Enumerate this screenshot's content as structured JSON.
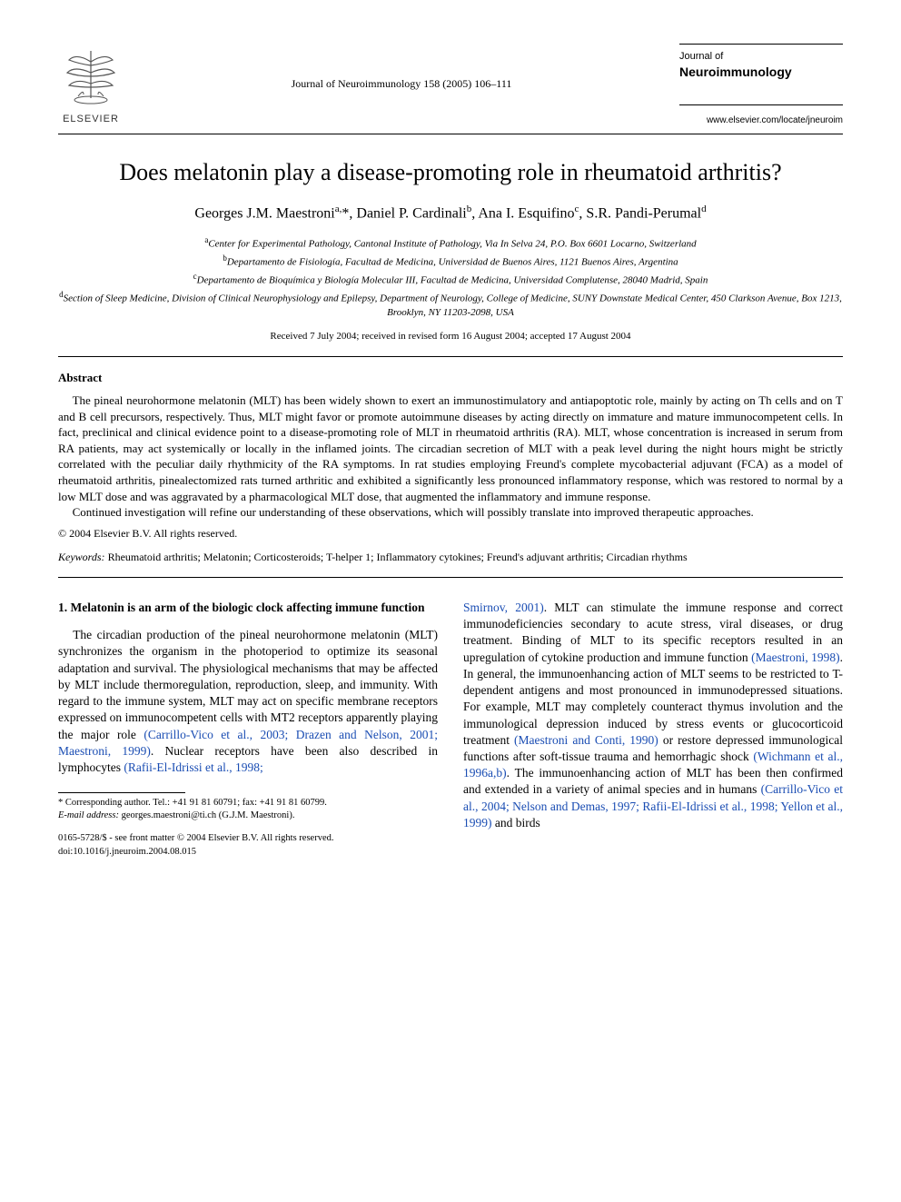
{
  "header": {
    "publisher_name": "ELSEVIER",
    "citation": "Journal of Neuroimmunology 158 (2005) 106–111",
    "journal_small": "Journal of",
    "journal_bold": "Neuroimmunology",
    "journal_url": "www.elsevier.com/locate/jneuroim"
  },
  "title": "Does melatonin play a disease-promoting role in rheumatoid arthritis?",
  "authors_html": "Georges J.M. Maestroni<sup>a,</sup>*, Daniel P. Cardinali<sup>b</sup>, Ana I. Esquifino<sup>c</sup>, S.R. Pandi-Perumal<sup>d</sup>",
  "affiliations": [
    {
      "sup": "a",
      "text": "Center for Experimental Pathology, Cantonal Institute of Pathology, Via In Selva 24, P.O. Box 6601 Locarno, Switzerland"
    },
    {
      "sup": "b",
      "text": "Departamento de Fisiología, Facultad de Medicina, Universidad de Buenos Aires, 1121 Buenos Aires, Argentina"
    },
    {
      "sup": "c",
      "text": "Departamento de Bioquímica y Biología Molecular III, Facultad de Medicina, Universidad Complutense, 28040 Madrid, Spain"
    },
    {
      "sup": "d",
      "text": "Section of Sleep Medicine, Division of Clinical Neurophysiology and Epilepsy, Department of Neurology, College of Medicine, SUNY Downstate Medical Center, 450 Clarkson Avenue, Box 1213, Brooklyn, NY 11203-2098, USA"
    }
  ],
  "dates": "Received 7 July 2004; received in revised form 16 August 2004; accepted 17 August 2004",
  "abstract": {
    "heading": "Abstract",
    "p1": "The pineal neurohormone melatonin (MLT) has been widely shown to exert an immunostimulatory and antiapoptotic role, mainly by acting on Th cells and on T and B cell precursors, respectively. Thus, MLT might favor or promote autoimmune diseases by acting directly on immature and mature immunocompetent cells. In fact, preclinical and clinical evidence point to a disease-promoting role of MLT in rheumatoid arthritis (RA). MLT, whose concentration is increased in serum from RA patients, may act systemically or locally in the inflamed joints. The circadian secretion of MLT with a peak level during the night hours might be strictly correlated with the peculiar daily rhythmicity of the RA symptoms. In rat studies employing Freund's complete mycobacterial adjuvant (FCA) as a model of rheumatoid arthritis, pinealectomized rats turned arthritic and exhibited a significantly less pronounced inflammatory response, which was restored to normal by a low MLT dose and was aggravated by a pharmacological MLT dose, that augmented the inflammatory and immune response.",
    "p2": "Continued investigation will refine our understanding of these observations, which will possibly translate into improved therapeutic approaches.",
    "copyright": "© 2004 Elsevier B.V. All rights reserved."
  },
  "keywords": {
    "label": "Keywords:",
    "text": " Rheumatoid arthritis; Melatonin; Corticosteroids; T-helper 1; Inflammatory cytokines; Freund's adjuvant arthritis; Circadian rhythms"
  },
  "body": {
    "section_heading": "1. Melatonin is an arm of the biologic clock affecting immune function",
    "left_p": "The circadian production of the pineal neurohormone melatonin (MLT) synchronizes the organism in the photoperiod to optimize its seasonal adaptation and survival. The physiological mechanisms that may be affected by MLT include thermoregulation, reproduction, sleep, and immunity. With regard to the immune system, MLT may act on specific membrane receptors expressed on immunocompetent cells with MT2 receptors apparently playing the major role ",
    "left_ref1": "(Carrillo-Vico et al., 2003; Drazen and Nelson, 2001; Maestroni, 1999)",
    "left_mid": ". Nuclear receptors have been also described in lymphocytes ",
    "left_ref2": "(Rafii-El-Idrissi et al., 1998; ",
    "right_ref_cont": "Smirnov, 2001)",
    "right_p1": ". MLT can stimulate the immune response and correct immunodeficiencies secondary to acute stress, viral diseases, or drug treatment. Binding of MLT to its specific receptors resulted in an upregulation of cytokine production and immune function ",
    "right_ref1": "(Maestroni, 1998)",
    "right_p2": ". In general, the immunoenhancing action of MLT seems to be restricted to T-dependent antigens and most pronounced in immunodepressed situations. For example, MLT may completely counteract thymus involution and the immunological depression induced by stress events or glucocorticoid treatment ",
    "right_ref2": "(Maestroni and Conti, 1990)",
    "right_p3": " or restore depressed immunological functions after soft-tissue trauma and hemorrhagic shock ",
    "right_ref3": "(Wichmann et al., 1996a,b)",
    "right_p4": ". The immunoenhancing action of MLT has been then confirmed and extended in a variety of animal species and in humans ",
    "right_ref4": "(Carrillo-Vico et al., 2004; Nelson and Demas, 1997; Rafii-El-Idrissi et al., 1998; Yellon et al., 1999)",
    "right_p5": " and birds"
  },
  "footnote": {
    "corr": "* Corresponding author. Tel.: +41 91 81 60791; fax: +41 91 81 60799.",
    "email_label": "E-mail address:",
    "email": " georges.maestroni@ti.ch (G.J.M. Maestroni)."
  },
  "footer": {
    "line1": "0165-5728/$ - see front matter © 2004 Elsevier B.V. All rights reserved.",
    "line2": "doi:10.1016/j.jneuroim.2004.08.015"
  },
  "colors": {
    "link": "#1a4db3",
    "text": "#000000",
    "bg": "#ffffff",
    "logo_orange": "#e67817"
  }
}
